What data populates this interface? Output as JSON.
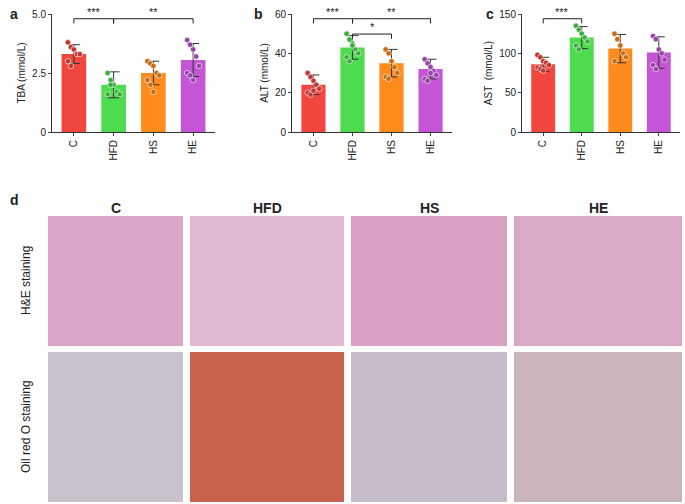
{
  "chart_data": [
    {
      "type": "bar",
      "title": "a",
      "y_label": "TBA (mmol/L)",
      "categories": [
        "C",
        "HFD",
        "HS",
        "HE"
      ],
      "values": [
        3.3,
        2.0,
        2.5,
        3.05
      ],
      "error": [
        0.4,
        0.55,
        0.5,
        0.7
      ],
      "points": [
        [
          3.8,
          3.6,
          3.5,
          3.3,
          3.3,
          3.0,
          2.8
        ],
        [
          2.5,
          2.2,
          2.0,
          1.7,
          1.6,
          1.6,
          2.0
        ],
        [
          3.0,
          2.9,
          2.8,
          2.5,
          2.4,
          2.2,
          2.0,
          1.7
        ],
        [
          3.9,
          3.7,
          3.5,
          3.2,
          2.8,
          2.5,
          2.4,
          2.2
        ]
      ],
      "colors": [
        "#f2473f",
        "#4ddc4d",
        "#ff8c1a",
        "#c355d6"
      ],
      "ylim": [
        0,
        5
      ],
      "yticks": [
        0,
        2.5,
        {
          "value": 5,
          "label": "5.0"
        }
      ],
      "significance": [
        {
          "from": "C",
          "to": "HFD",
          "label": "***"
        },
        {
          "from": "HFD",
          "to": "HE",
          "label": "**"
        }
      ]
    },
    {
      "type": "bar",
      "title": "b",
      "y_label": "ALT (mmol/L)",
      "categories": [
        "C",
        "HFD",
        "HS",
        "HE"
      ],
      "values": [
        24,
        43,
        35,
        32
      ],
      "error": [
        5,
        6,
        7,
        5
      ],
      "points": [
        [
          30,
          28,
          26,
          24,
          22,
          20,
          19,
          21
        ],
        [
          50,
          47,
          45,
          42,
          40,
          38,
          36,
          44
        ],
        [
          42,
          40,
          36,
          33,
          30,
          28,
          27
        ],
        [
          37,
          35,
          33,
          31,
          29,
          27,
          26,
          30
        ]
      ],
      "colors": [
        "#f2473f",
        "#4ddc4d",
        "#ff8c1a",
        "#c355d6"
      ],
      "ylim": [
        0,
        60
      ],
      "yticks": [
        0,
        20,
        40,
        60
      ],
      "significance": [
        {
          "from": "C",
          "to": "HFD",
          "label": "***"
        },
        {
          "from": "HFD",
          "to": "HS",
          "label": "*"
        },
        {
          "from": "HFD",
          "to": "HE",
          "label": "**"
        }
      ]
    },
    {
      "type": "bar",
      "title": "c",
      "y_label": "AST  (mmol/L)",
      "categories": [
        "C",
        "HFD",
        "HS",
        "HE"
      ],
      "values": [
        86,
        120,
        106,
        101
      ],
      "error": [
        9,
        14,
        18,
        20
      ],
      "points": [
        [
          98,
          95,
          90,
          88,
          85,
          82,
          80,
          78
        ],
        [
          135,
          130,
          125,
          120,
          115,
          110,
          105
        ],
        [
          125,
          118,
          110,
          100,
          95,
          90
        ],
        [
          122,
          118,
          105,
          100,
          92,
          85,
          80
        ]
      ],
      "colors": [
        "#f2473f",
        "#4ddc4d",
        "#ff8c1a",
        "#c355d6"
      ],
      "ylim": [
        0,
        150
      ],
      "yticks": [
        0,
        50,
        100,
        150
      ],
      "significance": [
        {
          "from": "C",
          "to": "HFD",
          "label": "***"
        }
      ]
    }
  ],
  "histology": {
    "title": "d",
    "columns": [
      "C",
      "HFD",
      "HS",
      "HE"
    ],
    "rows": [
      "H&E staining",
      "Oil red O staining"
    ]
  }
}
